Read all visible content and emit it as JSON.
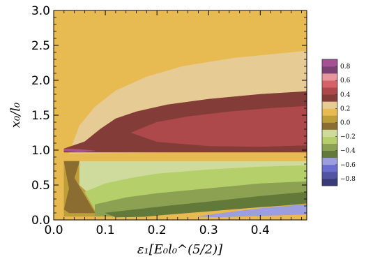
{
  "chart_data": {
    "type": "heatmap",
    "title": "",
    "xlabel": "ε₁[E₀l₀^(5/2)]",
    "ylabel": "x₀/l₀",
    "xlim": [
      0.0,
      0.49
    ],
    "ylim": [
      0.0,
      3.0
    ],
    "x_ticks": [
      {
        "value": 0.0,
        "label": "0.0"
      },
      {
        "value": 0.1,
        "label": "0.1"
      },
      {
        "value": 0.2,
        "label": "0.2"
      },
      {
        "value": 0.3,
        "label": "0.3"
      },
      {
        "value": 0.4,
        "label": "0.4"
      }
    ],
    "y_ticks": [
      {
        "value": 0.0,
        "label": "0.0"
      },
      {
        "value": 0.5,
        "label": "0.5"
      },
      {
        "value": 1.0,
        "label": "1.0"
      },
      {
        "value": 1.5,
        "label": "1.5"
      },
      {
        "value": 2.0,
        "label": "2.0"
      },
      {
        "value": 2.5,
        "label": "2.5"
      },
      {
        "value": 3.0,
        "label": "3.0"
      }
    ],
    "colorbar": {
      "range": [
        -0.9,
        0.9
      ],
      "levels": [
        -0.9,
        -0.8,
        -0.7,
        -0.6,
        -0.5,
        -0.4,
        -0.3,
        -0.2,
        -0.1,
        0.0,
        0.1,
        0.2,
        0.3,
        0.4,
        0.5,
        0.6,
        0.7,
        0.8,
        0.9
      ],
      "colors": [
        "#393b79",
        "#5254a3",
        "#6b6ecf",
        "#9c9ede",
        "#637939",
        "#8ca252",
        "#b5cf6b",
        "#cedb9c",
        "#8c6d31",
        "#bd9e39",
        "#e7ba52",
        "#e7cb94",
        "#843c39",
        "#ad494a",
        "#d6616b",
        "#e7969c",
        "#7b4173",
        "#a55194",
        "#ce6dbd"
      ],
      "tick_labels": [
        {
          "value": 0.8,
          "label": "0.8"
        },
        {
          "value": 0.6,
          "label": "0.6"
        },
        {
          "value": 0.4,
          "label": "0.4"
        },
        {
          "value": 0.2,
          "label": "0.2"
        },
        {
          "value": 0.0,
          "label": "0.0"
        },
        {
          "value": -0.2,
          "label": "−0.2"
        },
        {
          "value": -0.4,
          "label": "−0.4"
        },
        {
          "value": -0.6,
          "label": "−0.6"
        },
        {
          "value": -0.8,
          "label": "−0.8"
        }
      ]
    },
    "regions": [
      {
        "level": 0.05,
        "color": "#e7ba52",
        "boundary": [
          [
            0.0,
            0.0
          ],
          [
            0.49,
            0.0
          ],
          [
            0.49,
            3.0
          ],
          [
            0.0,
            3.0
          ]
        ]
      },
      {
        "level": 0.15,
        "color": "#e7cb94",
        "boundary": [
          [
            0.03,
            0.95
          ],
          [
            0.05,
            1.35
          ],
          [
            0.08,
            1.62
          ],
          [
            0.12,
            1.85
          ],
          [
            0.18,
            2.05
          ],
          [
            0.25,
            2.2
          ],
          [
            0.35,
            2.32
          ],
          [
            0.49,
            2.42
          ],
          [
            0.49,
            1.0
          ],
          [
            0.03,
            0.95
          ]
        ]
      },
      {
        "level": 0.25,
        "color": "#843c39",
        "boundary": [
          [
            0.02,
            1.02
          ],
          [
            0.06,
            1.12
          ],
          [
            0.09,
            1.3
          ],
          [
            0.12,
            1.45
          ],
          [
            0.16,
            1.55
          ],
          [
            0.22,
            1.65
          ],
          [
            0.3,
            1.73
          ],
          [
            0.4,
            1.8
          ],
          [
            0.49,
            1.84
          ],
          [
            0.49,
            0.97
          ],
          [
            0.02,
            0.97
          ]
        ]
      },
      {
        "level": 0.35,
        "color": "#ad494a",
        "boundary": [
          [
            0.15,
            1.25
          ],
          [
            0.2,
            1.4
          ],
          [
            0.26,
            1.48
          ],
          [
            0.34,
            1.55
          ],
          [
            0.42,
            1.6
          ],
          [
            0.49,
            1.63
          ],
          [
            0.49,
            1.07
          ],
          [
            0.4,
            1.05
          ],
          [
            0.3,
            1.06
          ],
          [
            0.2,
            1.12
          ],
          [
            0.15,
            1.25
          ]
        ]
      },
      {
        "level": 0.55,
        "color": "#a55194",
        "boundary": [
          [
            0.02,
            1.02
          ],
          [
            0.05,
            1.01
          ],
          [
            0.08,
            0.99
          ],
          [
            0.05,
            0.97
          ],
          [
            0.02,
            0.99
          ]
        ]
      },
      {
        "level": -0.05,
        "color": "#bd9e39",
        "boundary": [
          [
            0.02,
            0.05
          ],
          [
            0.02,
            0.84
          ],
          [
            0.49,
            0.84
          ],
          [
            0.49,
            0.05
          ]
        ]
      },
      {
        "level": -0.15,
        "color": "#8c6d31",
        "boundary": [
          [
            0.02,
            0.15
          ],
          [
            0.03,
            0.45
          ],
          [
            0.02,
            0.84
          ],
          [
            0.05,
            0.84
          ],
          [
            0.04,
            0.6
          ],
          [
            0.06,
            0.35
          ],
          [
            0.08,
            0.1
          ],
          [
            0.03,
            0.1
          ]
        ]
      },
      {
        "level": -0.25,
        "color": "#cedb9c",
        "boundary": [
          [
            0.05,
            0.84
          ],
          [
            0.49,
            0.84
          ],
          [
            0.49,
            0.62
          ],
          [
            0.4,
            0.58
          ],
          [
            0.3,
            0.52
          ],
          [
            0.2,
            0.46
          ],
          [
            0.12,
            0.38
          ],
          [
            0.08,
            0.3
          ],
          [
            0.05,
            0.5
          ]
        ]
      },
      {
        "level": -0.35,
        "color": "#b5cf6b",
        "boundary": [
          [
            0.06,
            0.4
          ],
          [
            0.1,
            0.52
          ],
          [
            0.15,
            0.6
          ],
          [
            0.2,
            0.66
          ],
          [
            0.3,
            0.72
          ],
          [
            0.4,
            0.76
          ],
          [
            0.49,
            0.78
          ],
          [
            0.49,
            0.45
          ],
          [
            0.35,
            0.36
          ],
          [
            0.22,
            0.28
          ],
          [
            0.14,
            0.2
          ],
          [
            0.08,
            0.14
          ]
        ]
      },
      {
        "level": -0.45,
        "color": "#8ca252",
        "boundary": [
          [
            0.08,
            0.22
          ],
          [
            0.14,
            0.32
          ],
          [
            0.2,
            0.38
          ],
          [
            0.3,
            0.45
          ],
          [
            0.4,
            0.52
          ],
          [
            0.49,
            0.55
          ],
          [
            0.49,
            0.3
          ],
          [
            0.35,
            0.22
          ],
          [
            0.22,
            0.14
          ],
          [
            0.12,
            0.06
          ],
          [
            0.08,
            0.06
          ]
        ]
      },
      {
        "level": -0.55,
        "color": "#637939",
        "boundary": [
          [
            0.1,
            0.1
          ],
          [
            0.16,
            0.15
          ],
          [
            0.22,
            0.2
          ],
          [
            0.3,
            0.26
          ],
          [
            0.4,
            0.34
          ],
          [
            0.49,
            0.4
          ],
          [
            0.49,
            0.24
          ],
          [
            0.4,
            0.18
          ],
          [
            0.3,
            0.1
          ],
          [
            0.2,
            0.05
          ],
          [
            0.12,
            0.04
          ]
        ]
      },
      {
        "level": 0.05,
        "color": "#e7ba52",
        "boundary": [
          [
            0.12,
            0.0
          ],
          [
            0.2,
            0.06
          ],
          [
            0.3,
            0.12
          ],
          [
            0.4,
            0.18
          ],
          [
            0.49,
            0.22
          ],
          [
            0.49,
            0.0
          ]
        ]
      },
      {
        "level": -0.65,
        "color": "#9c9ede",
        "boundary": [
          [
            0.28,
            0.05
          ],
          [
            0.35,
            0.12
          ],
          [
            0.42,
            0.18
          ],
          [
            0.49,
            0.22
          ],
          [
            0.49,
            0.08
          ],
          [
            0.4,
            0.06
          ],
          [
            0.32,
            0.04
          ]
        ]
      }
    ]
  }
}
